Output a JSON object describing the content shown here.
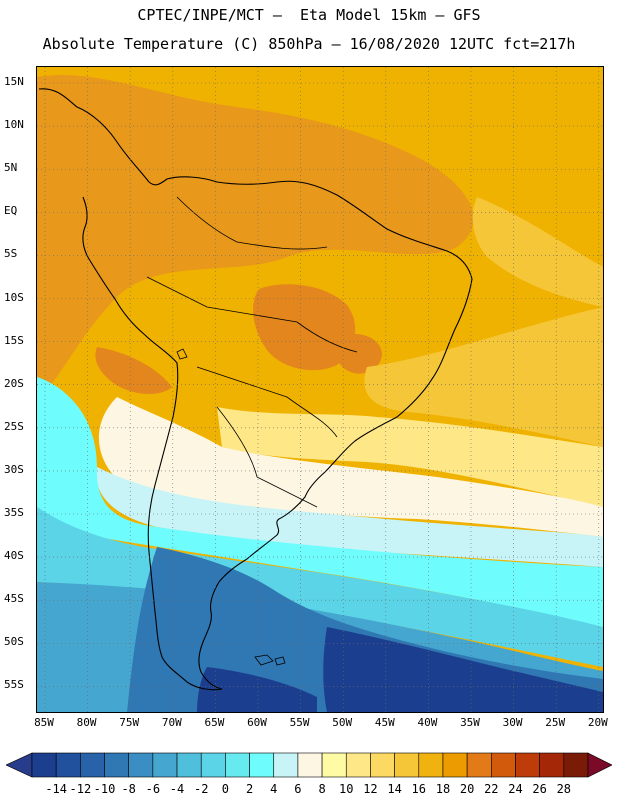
{
  "header": {
    "line1": "CPTEC/INPE/MCT –  Eta Model 15km – GFS",
    "line2": "Absolute Temperature (C) 850hPa – 16/08/2020 12UTC fct=217h"
  },
  "axes": {
    "lat_labels": [
      "15N",
      "10N",
      "5N",
      "EQ",
      "5S",
      "10S",
      "15S",
      "20S",
      "25S",
      "30S",
      "35S",
      "40S",
      "45S",
      "50S",
      "55S"
    ],
    "lon_labels": [
      "85W",
      "80W",
      "75W",
      "70W",
      "65W",
      "60W",
      "55W",
      "50W",
      "45W",
      "40W",
      "35W",
      "30W",
      "25W",
      "20W"
    ]
  },
  "colorbar": {
    "labels": [
      "-14",
      "-12",
      "-10",
      "-8",
      "-6",
      "-4",
      "-2",
      "0",
      "2",
      "4",
      "6",
      "8",
      "10",
      "12",
      "14",
      "16",
      "18",
      "20",
      "22",
      "24",
      "26",
      "28"
    ],
    "colors": [
      "#1c3e8e",
      "#21509c",
      "#2862a8",
      "#2f78b4",
      "#3a8ec3",
      "#45a6cf",
      "#4fbfdb",
      "#5ad4e6",
      "#67e9f0",
      "#6ffcfc",
      "#c8f4f8",
      "#fdf6e3",
      "#fefba4",
      "#fee787",
      "#fcd962",
      "#f5c637",
      "#f0b20f",
      "#ec9c00",
      "#e37a18",
      "#d15a0c",
      "#be3c09",
      "#a42708",
      "#7a1b08"
    ],
    "end_low_color": "#283c8c",
    "end_high_color": "#7a0a28"
  },
  "map_colors": {
    "warm_orange": "#f0b200",
    "deep_orange": "#e8981a",
    "hot_core": "#e2861d",
    "yellow_band": "#f5c637",
    "light_yellow": "#fee787",
    "cream": "#fdf6e3",
    "pale_cyan": "#c8f4f8",
    "cyan": "#6ffcfc",
    "sky": "#5ad4e6",
    "mid_blue": "#45a6cf",
    "blue": "#2f78b4",
    "navy": "#1c3e8e"
  }
}
